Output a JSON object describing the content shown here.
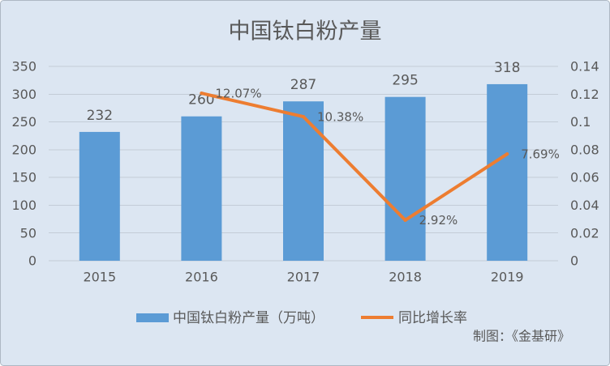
{
  "chart_data": {
    "type": "bar",
    "title": "中国钛白粉产量",
    "categories": [
      "2015",
      "2016",
      "2017",
      "2018",
      "2019"
    ],
    "series": [
      {
        "name": "中国钛白粉产量（万吨）",
        "type": "bar",
        "color": "#5B9BD5",
        "values": [
          232,
          260,
          287,
          295,
          318
        ]
      },
      {
        "name": "同比增长率",
        "type": "line",
        "color": "#ED7D31",
        "values": [
          null,
          0.1207,
          0.1038,
          0.0292,
          0.0769
        ],
        "labels": [
          null,
          "12.07%",
          "10.38%",
          "2.92%",
          "7.69%"
        ]
      }
    ],
    "ylim": [
      0,
      350
    ],
    "yticks": [
      0,
      50,
      100,
      150,
      200,
      250,
      300,
      350
    ],
    "y2lim": [
      0,
      0.14
    ],
    "y2ticks": [
      0,
      0.02,
      0.04,
      0.06,
      0.08,
      0.1,
      0.12,
      0.14
    ],
    "grid": true,
    "legend": "bottom"
  },
  "footer": {
    "credit": "制图：《金基研》"
  },
  "colors": {
    "background": "#DCE6F2",
    "border": "#AEB8C4",
    "grid": "#C3CCD7",
    "text": "#595959"
  }
}
